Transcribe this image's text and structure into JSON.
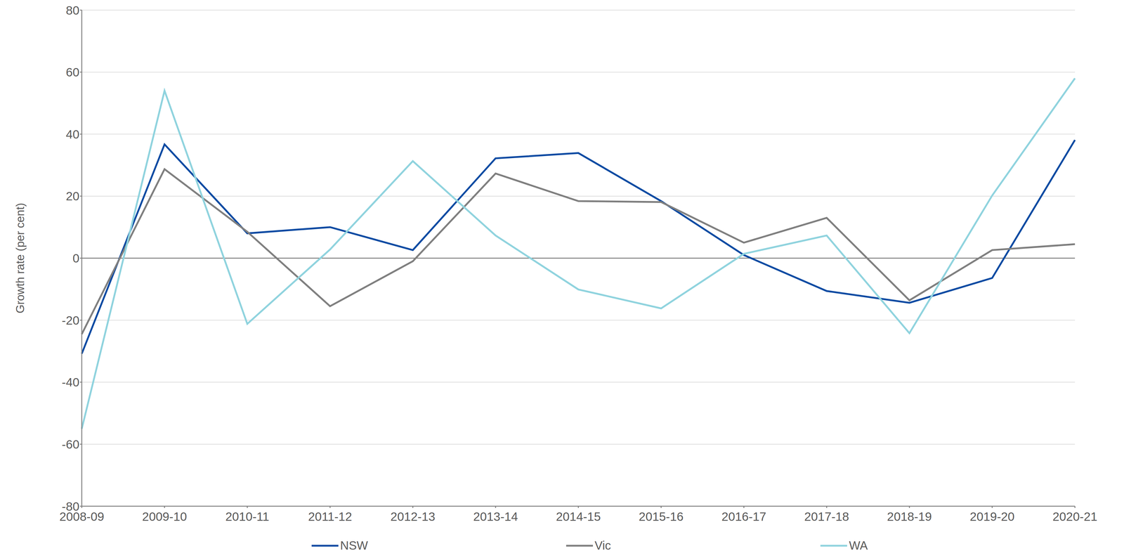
{
  "chart_data": {
    "type": "line",
    "y_label": "Growth rate (per cent)",
    "categories": [
      "2008-09",
      "2009-10",
      "2010-11",
      "2011-12",
      "2012-13",
      "2013-14",
      "2014-15",
      "2015-16",
      "2016-17",
      "2017-18",
      "2018-19",
      "2019-20",
      "2020-21"
    ],
    "series": [
      {
        "name": "NSW",
        "color": "#0b4aa2",
        "values": [
          -30.8,
          36.7,
          8,
          10,
          2.6,
          32.2,
          33.9,
          18.4,
          1,
          -10.6,
          -14.4,
          -6.4,
          38.1
        ]
      },
      {
        "name": "Vic",
        "color": "#7f7f7f",
        "values": [
          -24.5,
          28.7,
          8.5,
          -15.5,
          -1,
          27.3,
          18.4,
          18.1,
          5,
          13,
          -13.6,
          2.6,
          4.5
        ]
      },
      {
        "name": "WA",
        "color": "#8fd3de",
        "values": [
          -55,
          54,
          -21.2,
          2.8,
          31.3,
          7.3,
          -10.1,
          -16.2,
          1.4,
          7.3,
          -24.2,
          20.2,
          58
        ]
      }
    ],
    "ylim": [
      -80,
      80
    ],
    "yticks": [
      -80,
      -60,
      -40,
      -20,
      0,
      20,
      40,
      60,
      80
    ],
    "grid": true,
    "legend": "bottom"
  }
}
